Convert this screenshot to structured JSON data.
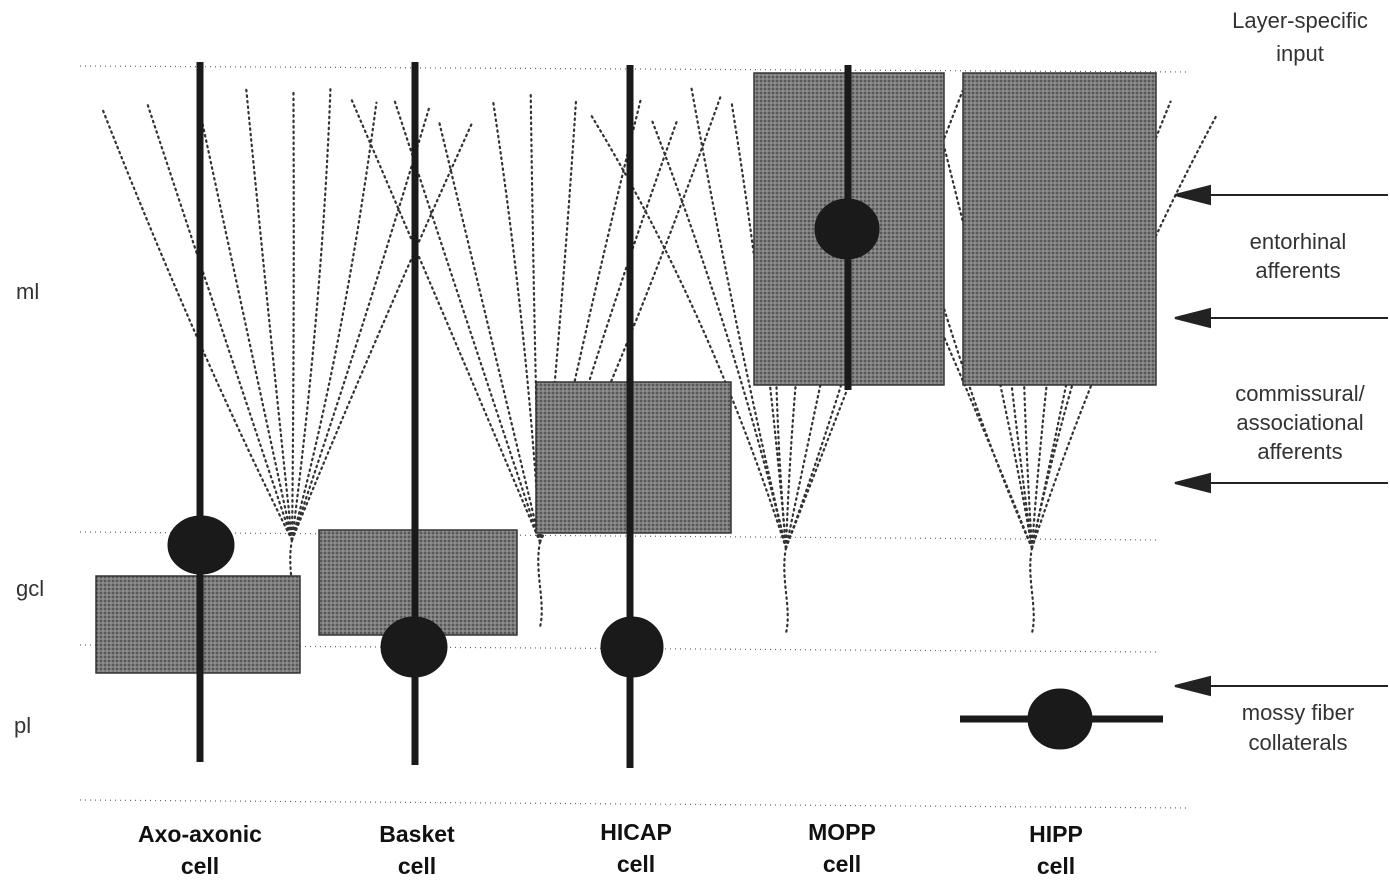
{
  "title": [
    "Layer-specific",
    "input"
  ],
  "layers": [
    "ml",
    "gcl",
    "pl"
  ],
  "cells": [
    {
      "name": [
        "Axo-axonic",
        "cell"
      ]
    },
    {
      "name": [
        "Basket",
        "cell"
      ]
    },
    {
      "name": [
        "HICAP",
        "cell"
      ]
    },
    {
      "name": [
        "MOPP",
        "cell"
      ]
    },
    {
      "name": [
        "HIPP",
        "cell"
      ]
    }
  ],
  "inputs": [
    {
      "label": [
        "entorhinal",
        "afferents"
      ]
    },
    {
      "label": [
        "commissural/",
        "associational",
        "afferents"
      ]
    },
    {
      "label": [
        "mossy fiber",
        "collaterals"
      ]
    }
  ]
}
